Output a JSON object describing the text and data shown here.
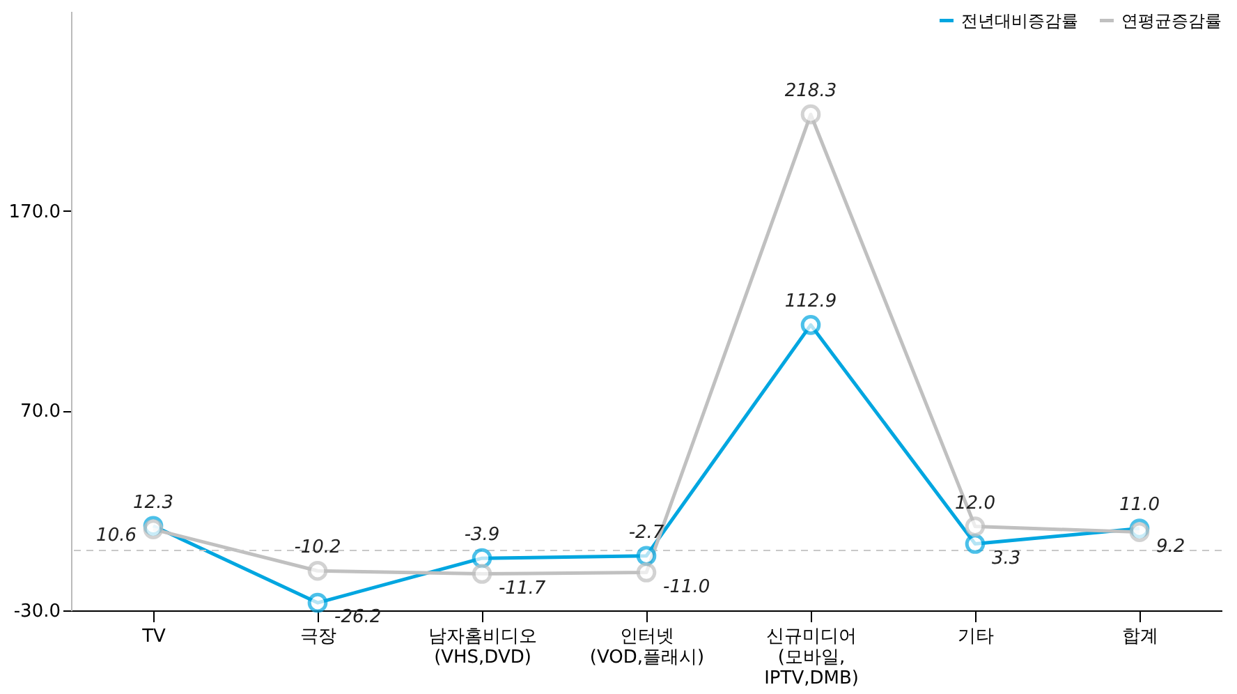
{
  "chart_data": {
    "type": "line",
    "categories": [
      "TV",
      "극장",
      "남자홈비디오\n(VHS,DVD)",
      "인터넷\n(VOD,플래시)",
      "신규미디어\n(모바일,\nIPTV,DMB)",
      "기타",
      "합계"
    ],
    "series": [
      {
        "name": "전년대비증감률",
        "color": "#00a6e0",
        "values": [
          12.3,
          -26.2,
          -3.9,
          -2.7,
          112.9,
          3.3,
          11.0
        ],
        "value_labels": [
          "12.3",
          "-26.2",
          "-3.9",
          "-2.7",
          "112.9",
          "3.3",
          "11.0"
        ]
      },
      {
        "name": "연평균증감률",
        "color": "#c0c0c0",
        "values": [
          10.6,
          -10.2,
          -11.7,
          -11.0,
          218.3,
          12.0,
          9.2
        ],
        "value_labels": [
          "10.6",
          "-10.2",
          "-11.7",
          "-11.0",
          "218.3",
          "12.0",
          "9.2"
        ]
      }
    ],
    "ylim": [
      -30,
      270
    ],
    "yticks": [
      {
        "value": -30,
        "label": "-30.0"
      },
      {
        "value": 70,
        "label": "70.0"
      },
      {
        "value": 170,
        "label": "170.0"
      }
    ],
    "ref_lines": [
      {
        "axis": "y",
        "value": 0,
        "label": null,
        "color": "#c8c8c8",
        "line_style": "dashed"
      }
    ],
    "data_labels": true,
    "grid": false,
    "legend": "top right",
    "marker": "circle",
    "line_style": "solid"
  }
}
